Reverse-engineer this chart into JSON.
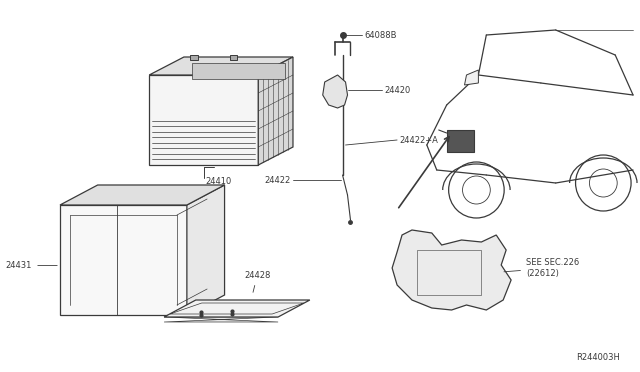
{
  "bg_color": "#ffffff",
  "diagram_id": "R244003H",
  "line_color": "#3a3a3a",
  "label_color": "#3a3a3a",
  "font_size": 6.0,
  "parts": {
    "24410": "24410",
    "24431": "24431",
    "24428": "24428",
    "24420": "24420",
    "24422": "24422",
    "24422A": "24422+A",
    "64088B": "64088B",
    "SEC226": "SEE SEC.226\n(22612)"
  }
}
